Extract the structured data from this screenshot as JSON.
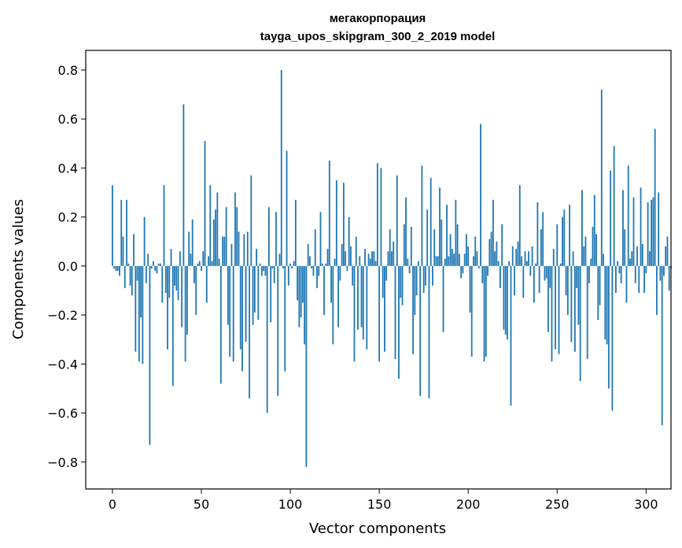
{
  "chart_data": {
    "type": "bar",
    "title": "мегакорпорация",
    "subtitle": "tayga_upos_skipgram_300_2_2019 model",
    "xlabel": "Vector components",
    "ylabel": "Components values",
    "xlim": [
      -15,
      314
    ],
    "ylim": [
      -0.91,
      0.88
    ],
    "xticks": [
      0,
      50,
      100,
      150,
      200,
      250,
      300
    ],
    "xtick_labels": [
      "0",
      "50",
      "100",
      "150",
      "200",
      "250",
      "300"
    ],
    "yticks": [
      -0.8,
      -0.6,
      -0.4,
      -0.2,
      0.0,
      0.2,
      0.4,
      0.6,
      0.8
    ],
    "ytick_labels": [
      "−0.8",
      "−0.6",
      "−0.4",
      "−0.2",
      "0.0",
      "0.2",
      "0.4",
      "0.6",
      "0.8"
    ],
    "bar_color": "#1f77b4",
    "grid": false,
    "legend": "none",
    "values": [
      0.33,
      -0.01,
      -0.02,
      -0.02,
      -0.04,
      0.27,
      0.12,
      -0.09,
      0.27,
      0.01,
      -0.08,
      -0.12,
      0.13,
      -0.35,
      -0.06,
      -0.39,
      -0.21,
      -0.4,
      0.2,
      -0.07,
      0.05,
      -0.73,
      -0.01,
      0.02,
      -0.02,
      -0.03,
      0.01,
      0.01,
      -0.15,
      0.33,
      -0.11,
      -0.34,
      -0.13,
      0.07,
      -0.49,
      -0.08,
      -0.1,
      -0.14,
      0.06,
      -0.25,
      0.66,
      -0.39,
      -0.28,
      0.14,
      0.05,
      0.19,
      -0.07,
      -0.2,
      0.01,
      0.02,
      -0.02,
      0.06,
      0.51,
      -0.15,
      0.04,
      0.33,
      0.02,
      0.19,
      0.23,
      0.3,
      0.03,
      -0.48,
      0.12,
      0.12,
      0.24,
      -0.24,
      -0.37,
      0.09,
      -0.39,
      0.3,
      0.24,
      0.14,
      -0.34,
      -0.43,
      0.13,
      -0.31,
      0.14,
      -0.54,
      0.37,
      -0.24,
      -0.19,
      0.07,
      -0.22,
      0.01,
      -0.04,
      -0.02,
      -0.04,
      -0.6,
      0.24,
      -0.23,
      -0.01,
      -0.07,
      0.22,
      -0.53,
      0.05,
      0.8,
      -0.01,
      -0.43,
      0.47,
      -0.08,
      0.01,
      -0.01,
      0.02,
      0.27,
      -0.14,
      -0.25,
      -0.21,
      -0.15,
      -0.32,
      -0.82,
      0.09,
      0.04,
      -0.01,
      -0.04,
      0.15,
      -0.09,
      -0.04,
      0.22,
      0.01,
      -0.2,
      0.01,
      0.07,
      0.43,
      -0.15,
      -0.32,
      0.03,
      0.35,
      -0.25,
      -0.06,
      0.09,
      0.34,
      0.06,
      -0.02,
      0.2,
      0.08,
      -0.08,
      -0.39,
      0.12,
      -0.26,
      0.04,
      -0.25,
      -0.3,
      0.07,
      -0.34,
      0.05,
      0.03,
      0.06,
      0.06,
      0.02,
      0.42,
      -0.39,
      0.4,
      -0.13,
      -0.35,
      -0.06,
      0.06,
      0.15,
      0.06,
      0.1,
      -0.38,
      0.37,
      -0.46,
      -0.13,
      -0.16,
      0.17,
      0.28,
      0.03,
      -0.03,
      0.16,
      -0.36,
      -0.2,
      -0.12,
      0.02,
      -0.53,
      0.41,
      -0.11,
      -0.08,
      0.23,
      -0.54,
      0.36,
      -0.08,
      0.15,
      0.04,
      0.04,
      0.32,
      0.19,
      -0.27,
      0.03,
      0.25,
      0.04,
      0.13,
      0.07,
      0.05,
      0.27,
      0.17,
      0.05,
      -0.05,
      -0.03,
      0.05,
      0.13,
      0.08,
      -0.19,
      -0.37,
      0.04,
      0.12,
      0.06,
      -0.01,
      0.58,
      -0.07,
      -0.39,
      -0.37,
      -0.04,
      0.11,
      0.14,
      0.27,
      0.06,
      0.1,
      0.02,
      -0.09,
      0.17,
      -0.26,
      -0.28,
      -0.3,
      0.02,
      -0.57,
      0.08,
      -0.12,
      0.07,
      0.1,
      0.33,
      0.04,
      -0.13,
      0.06,
      0.02,
      0.06,
      -0.04,
      0.08,
      -0.15,
      0.01,
      0.26,
      -0.11,
      0.15,
      0.22,
      -0.06,
      -0.05,
      -0.27,
      -0.09,
      -0.39,
      0.07,
      -0.34,
      0.17,
      -0.36,
      0.01,
      0.2,
      0.23,
      -0.12,
      -0.2,
      0.25,
      -0.31,
      0.06,
      -0.35,
      -0.09,
      -0.24,
      -0.47,
      0.31,
      0.08,
      0.12,
      -0.38,
      -0.07,
      0.03,
      0.16,
      0.29,
      0.13,
      -0.22,
      -0.16,
      0.72,
      0.05,
      -0.3,
      -0.32,
      -0.5,
      0.39,
      -0.59,
      0.49,
      -0.11,
      0.02,
      -0.03,
      -0.07,
      0.31,
      0.15,
      -0.15,
      0.41,
      0.03,
      0.06,
      0.28,
      -0.07,
      0.08,
      -0.11,
      0.32,
      0.09,
      -0.11,
      -0.03,
      0.26,
      0.06,
      0.27,
      0.28,
      0.56,
      -0.2,
      0.3,
      -0.06,
      -0.65,
      -0.04,
      0.08,
      0.12,
      -0.1,
      -0.01
    ]
  }
}
